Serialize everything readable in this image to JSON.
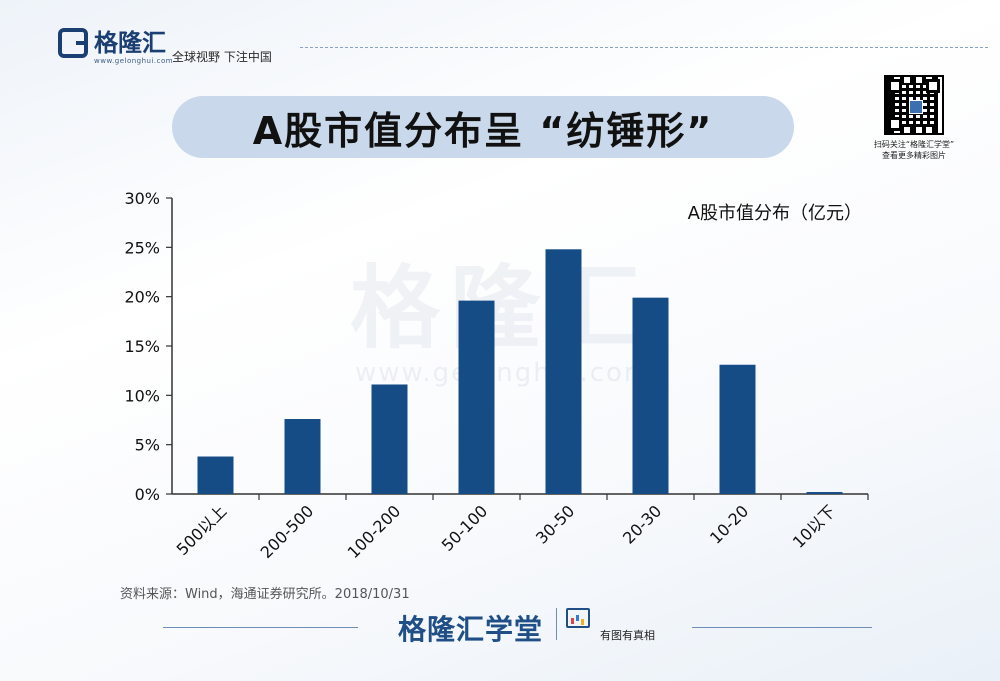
{
  "header": {
    "logo_text": "格隆汇",
    "logo_url": "www.gelonghui.com",
    "slogan": "全球视野 下注中国"
  },
  "title": "A股市值分布呈 “纺锤形”",
  "qr": {
    "caption_line1": "扫码关注“格隆汇学堂”",
    "caption_line2": "查看更多精彩图片"
  },
  "watermark": {
    "text": "格隆汇",
    "url": "www.gelonghui.com"
  },
  "chart_data": {
    "type": "bar",
    "legend": "A股市值分布（亿元）",
    "legend_position": "top-right",
    "categories": [
      "500以上",
      "200-500",
      "100-200",
      "50-100",
      "30-50",
      "20-30",
      "10-20",
      "10以下"
    ],
    "values": [
      3.8,
      7.6,
      11.1,
      19.6,
      24.8,
      19.9,
      13.1,
      0.2
    ],
    "ylim": [
      0,
      30
    ],
    "yticks": [
      0,
      5,
      10,
      15,
      20,
      25,
      30
    ],
    "ytick_labels": [
      "0%",
      "5%",
      "10%",
      "15%",
      "20%",
      "25%",
      "30%"
    ],
    "bar_color": "#164c86",
    "grid": false
  },
  "source": "资料来源：Wind，海通证券研究所。2018/10/31",
  "footer": {
    "brand": "格隆汇学堂",
    "tag": "有图有真相"
  }
}
